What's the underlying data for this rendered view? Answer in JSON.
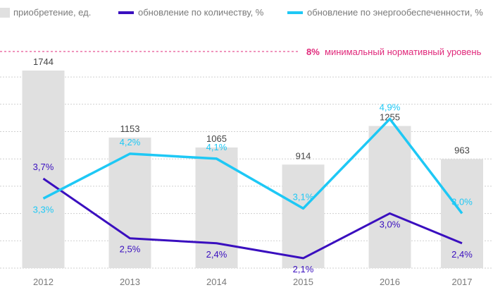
{
  "chart_data": {
    "type": "bar+line",
    "categories": [
      "2012",
      "2013",
      "2014",
      "2015",
      "2016",
      "2017"
    ],
    "legend": [
      {
        "key": "bars",
        "label": "приобретение, ед."
      },
      {
        "key": "qty",
        "label": "обновление по количеству, %"
      },
      {
        "key": "energy",
        "label": "обновление по энергообеспеченности, %"
      }
    ],
    "bars": {
      "name": "приобретение, ед.",
      "values": [
        1744,
        1153,
        1065,
        914,
        1255,
        963
      ],
      "labels": [
        "1744",
        "1153",
        "1065",
        "914",
        "1255",
        "963"
      ],
      "ylim": [
        0,
        1800
      ]
    },
    "series": [
      {
        "key": "qty",
        "name": "обновление по количеству, %",
        "values": [
          3.7,
          2.5,
          2.4,
          2.1,
          3.0,
          2.4
        ],
        "labels": [
          "3,7%",
          "2,5%",
          "2,4%",
          "2,1%",
          "3,0%",
          "2,4%"
        ]
      },
      {
        "key": "energy",
        "name": "обновление по энергообеспеченности, %",
        "values": [
          3.3,
          4.2,
          4.1,
          3.1,
          4.9,
          3.0
        ],
        "labels": [
          "3,3%",
          "4,2%",
          "4,1%",
          "3,1%",
          "4,9%",
          "3,0%"
        ]
      }
    ],
    "line_ylim": [
      1.9,
      6.0
    ],
    "reference_line": {
      "value_label": "8%",
      "label": "минимальный нормативный уровень"
    },
    "grid": true,
    "legend_position": "top",
    "colors": {
      "bars": "#e0e0e0",
      "qty": "#3a0fbf",
      "energy": "#1ec8f5",
      "reference": "#e0287a",
      "grid": "#cfcfcf",
      "axis_text": "#7a7a7a",
      "bar_label": "#444444"
    }
  }
}
